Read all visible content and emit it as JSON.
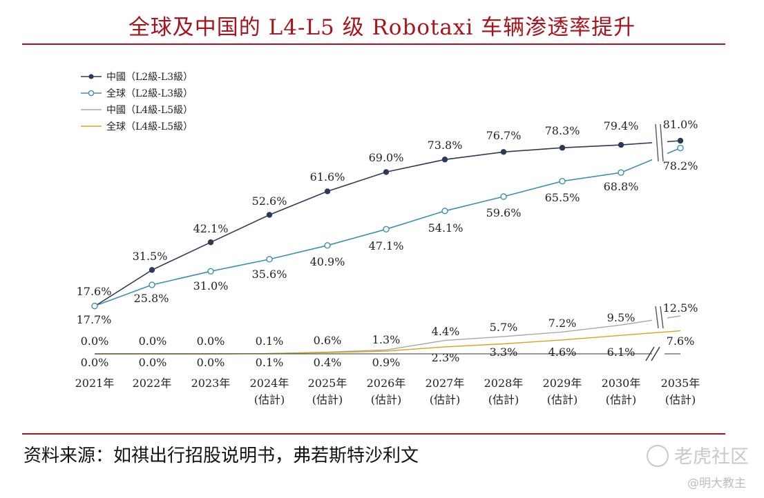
{
  "page": {
    "title": "全球及中国的 L4-L5 级 Robotaxi 车辆渗透率提升",
    "source": "资料来源：如祺出行招股说明书，弗若斯特沙利文",
    "watermark": "老虎社区",
    "handle": "@明大教主"
  },
  "chart_data": {
    "type": "line",
    "categories": [
      "2021年",
      "2022年",
      "2023年",
      "2024年",
      "2025年",
      "2026年",
      "2027年",
      "2028年",
      "2029年",
      "2030年",
      "2035年"
    ],
    "category_notes": [
      "",
      "",
      "",
      "(估計)",
      "(估計)",
      "(估計)",
      "(估計)",
      "(估計)",
      "(估計)",
      "(估計)",
      "(估計)"
    ],
    "axis_break": "between 2030年 and 2035年",
    "series": [
      {
        "name": "中國（L2級-L3級）",
        "color": "#2b3a55",
        "marker": "filled-circle",
        "values": [
          17.6,
          31.5,
          42.1,
          52.6,
          61.6,
          69.0,
          73.8,
          76.7,
          78.3,
          79.4,
          81.0
        ],
        "labels": [
          "17.6%",
          "31.5%",
          "42.1%",
          "52.6%",
          "61.6%",
          "69.0%",
          "73.8%",
          "76.7%",
          "78.3%",
          "79.4%",
          "81.0%"
        ]
      },
      {
        "name": "全球（L2級-L3級）",
        "color": "#3c8fb0",
        "marker": "hollow-circle",
        "values": [
          17.7,
          25.8,
          31.0,
          35.6,
          40.9,
          47.1,
          54.1,
          59.6,
          65.5,
          68.8,
          78.2
        ],
        "labels": [
          "17.7%",
          "25.8%",
          "31.0%",
          "35.6%",
          "40.9%",
          "47.1%",
          "54.1%",
          "59.6%",
          "65.5%",
          "68.8%",
          "78.2%"
        ]
      },
      {
        "name": "中國（L4級-L5級）",
        "color": "#a8a8a8",
        "marker": "none",
        "values": [
          0.0,
          0.0,
          0.0,
          0.1,
          0.6,
          1.3,
          4.4,
          5.7,
          7.2,
          9.5,
          12.5
        ],
        "labels": [
          "0.0%",
          "0.0%",
          "0.0%",
          "0.1%",
          "0.6%",
          "1.3%",
          "4.4%",
          "5.7%",
          "7.2%",
          "9.5%",
          "12.5%"
        ]
      },
      {
        "name": "全球（L4級-L5級）",
        "color": "#d9a21b",
        "marker": "none",
        "values": [
          0.0,
          0.0,
          0.0,
          0.1,
          0.4,
          0.9,
          2.3,
          3.3,
          4.6,
          6.1,
          7.6
        ],
        "labels": [
          "0.0%",
          "0.0%",
          "0.0%",
          "0.1%",
          "0.4%",
          "0.9%",
          "2.3%",
          "3.3%",
          "4.6%",
          "6.1%",
          "7.6%"
        ]
      }
    ],
    "legend_position": "top-left",
    "grid": false,
    "axes_visible": false
  }
}
